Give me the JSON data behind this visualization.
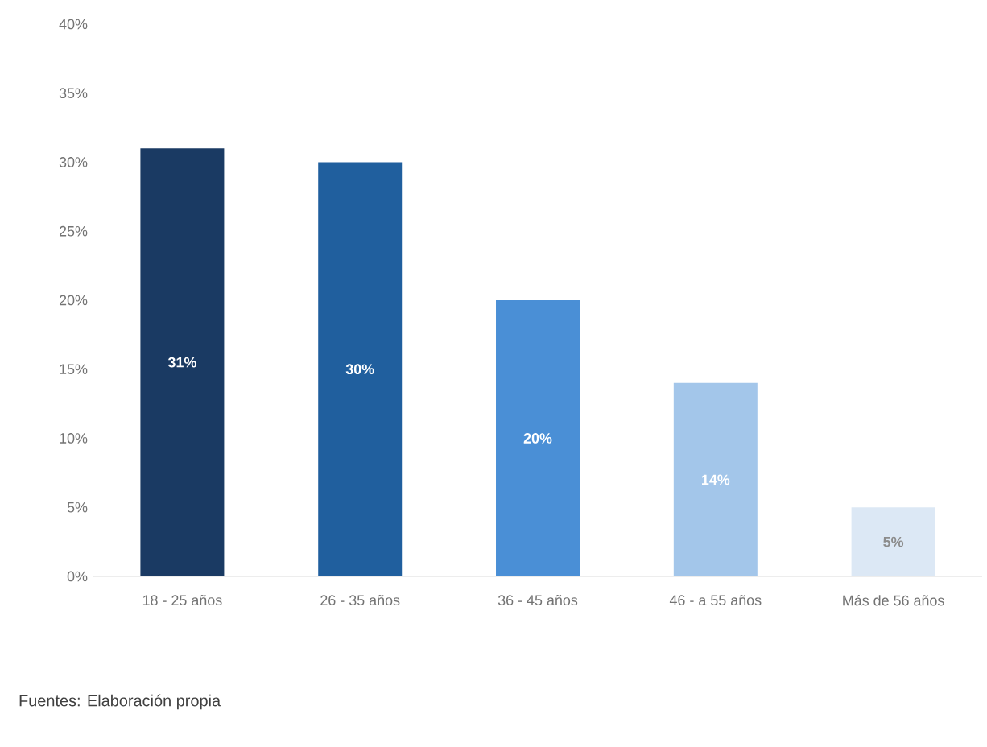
{
  "chart_data": {
    "type": "bar",
    "categories": [
      "18 - 25 años",
      "26 - 35 años",
      "36 - 45 años",
      "46 - a 55 años",
      "Más de 56 años"
    ],
    "values": [
      31,
      30,
      20,
      14,
      5
    ],
    "colors": [
      "#1a3a63",
      "#205f9e",
      "#4a8fd6",
      "#a3c6ea",
      "#dce8f5"
    ],
    "value_labels": [
      "31%",
      "30%",
      "20%",
      "14%",
      "5%"
    ],
    "ylim": [
      0,
      40
    ],
    "yticks": [
      {
        "value": 0,
        "label": "0%"
      },
      {
        "value": 5,
        "label": "5%"
      },
      {
        "value": 10,
        "label": "10%"
      },
      {
        "value": 15,
        "label": "15%"
      },
      {
        "value": 20,
        "label": "20%"
      },
      {
        "value": 25,
        "label": "25%"
      },
      {
        "value": 30,
        "label": "30%"
      },
      {
        "value": 35,
        "label": "35%"
      },
      {
        "value": 40,
        "label": "40%"
      }
    ],
    "annotations": [
      "Fuentes: Elaboración propia"
    ]
  }
}
